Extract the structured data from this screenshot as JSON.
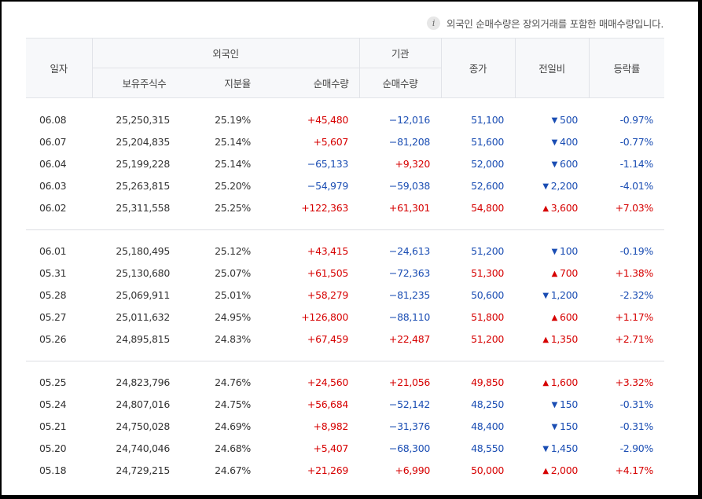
{
  "notice": "외국인 순매수량은 장외거래를 포함한 매매수량입니다.",
  "headers": {
    "date": "일자",
    "foreign": "외국인",
    "institution": "기관",
    "close": "종가",
    "change": "전일비",
    "rate": "등락률",
    "holdings": "보유주식수",
    "ratio": "지분율",
    "net_foreign": "순매수량",
    "net_inst": "순매수량"
  },
  "groups": [
    [
      {
        "date": "06.08",
        "hold": "25,250,315",
        "ratio": "25.19%",
        "foreign": "+45,480",
        "fdir": "up",
        "inst": "−12,016",
        "idir": "down",
        "close": "51,100",
        "cdir": "down",
        "arrow": "▼",
        "change": "500",
        "rate": "-0.97%"
      },
      {
        "date": "06.07",
        "hold": "25,204,835",
        "ratio": "25.14%",
        "foreign": "+5,607",
        "fdir": "up",
        "inst": "−81,208",
        "idir": "down",
        "close": "51,600",
        "cdir": "down",
        "arrow": "▼",
        "change": "400",
        "rate": "-0.77%"
      },
      {
        "date": "06.04",
        "hold": "25,199,228",
        "ratio": "25.14%",
        "foreign": "−65,133",
        "fdir": "down",
        "inst": "+9,320",
        "idir": "up",
        "close": "52,000",
        "cdir": "down",
        "arrow": "▼",
        "change": "600",
        "rate": "-1.14%"
      },
      {
        "date": "06.03",
        "hold": "25,263,815",
        "ratio": "25.20%",
        "foreign": "−54,979",
        "fdir": "down",
        "inst": "−59,038",
        "idir": "down",
        "close": "52,600",
        "cdir": "down",
        "arrow": "▼",
        "change": "2,200",
        "rate": "-4.01%"
      },
      {
        "date": "06.02",
        "hold": "25,311,558",
        "ratio": "25.25%",
        "foreign": "+122,363",
        "fdir": "up",
        "inst": "+61,301",
        "idir": "up",
        "close": "54,800",
        "cdir": "up",
        "arrow": "▲",
        "change": "3,600",
        "rate": "+7.03%"
      }
    ],
    [
      {
        "date": "06.01",
        "hold": "25,180,495",
        "ratio": "25.12%",
        "foreign": "+43,415",
        "fdir": "up",
        "inst": "−24,613",
        "idir": "down",
        "close": "51,200",
        "cdir": "down",
        "arrow": "▼",
        "change": "100",
        "rate": "-0.19%"
      },
      {
        "date": "05.31",
        "hold": "25,130,680",
        "ratio": "25.07%",
        "foreign": "+61,505",
        "fdir": "up",
        "inst": "−72,363",
        "idir": "down",
        "close": "51,300",
        "cdir": "up",
        "arrow": "▲",
        "change": "700",
        "rate": "+1.38%"
      },
      {
        "date": "05.28",
        "hold": "25,069,911",
        "ratio": "25.01%",
        "foreign": "+58,279",
        "fdir": "up",
        "inst": "−81,235",
        "idir": "down",
        "close": "50,600",
        "cdir": "down",
        "arrow": "▼",
        "change": "1,200",
        "rate": "-2.32%"
      },
      {
        "date": "05.27",
        "hold": "25,011,632",
        "ratio": "24.95%",
        "foreign": "+126,800",
        "fdir": "up",
        "inst": "−88,110",
        "idir": "down",
        "close": "51,800",
        "cdir": "up",
        "arrow": "▲",
        "change": "600",
        "rate": "+1.17%"
      },
      {
        "date": "05.26",
        "hold": "24,895,815",
        "ratio": "24.83%",
        "foreign": "+67,459",
        "fdir": "up",
        "inst": "+22,487",
        "idir": "up",
        "close": "51,200",
        "cdir": "up",
        "arrow": "▲",
        "change": "1,350",
        "rate": "+2.71%"
      }
    ],
    [
      {
        "date": "05.25",
        "hold": "24,823,796",
        "ratio": "24.76%",
        "foreign": "+24,560",
        "fdir": "up",
        "inst": "+21,056",
        "idir": "up",
        "close": "49,850",
        "cdir": "up",
        "arrow": "▲",
        "change": "1,600",
        "rate": "+3.32%"
      },
      {
        "date": "05.24",
        "hold": "24,807,016",
        "ratio": "24.75%",
        "foreign": "+56,684",
        "fdir": "up",
        "inst": "−52,142",
        "idir": "down",
        "close": "48,250",
        "cdir": "down",
        "arrow": "▼",
        "change": "150",
        "rate": "-0.31%"
      },
      {
        "date": "05.21",
        "hold": "24,750,028",
        "ratio": "24.69%",
        "foreign": "+8,982",
        "fdir": "up",
        "inst": "−31,376",
        "idir": "down",
        "close": "48,400",
        "cdir": "down",
        "arrow": "▼",
        "change": "150",
        "rate": "-0.31%"
      },
      {
        "date": "05.20",
        "hold": "24,740,046",
        "ratio": "24.68%",
        "foreign": "+5,407",
        "fdir": "up",
        "inst": "−68,300",
        "idir": "down",
        "close": "48,550",
        "cdir": "down",
        "arrow": "▼",
        "change": "1,450",
        "rate": "-2.90%"
      },
      {
        "date": "05.18",
        "hold": "24,729,215",
        "ratio": "24.67%",
        "foreign": "+21,269",
        "fdir": "up",
        "inst": "+6,990",
        "idir": "up",
        "close": "50,000",
        "cdir": "up",
        "arrow": "▲",
        "change": "2,000",
        "rate": "+4.17%"
      }
    ]
  ]
}
